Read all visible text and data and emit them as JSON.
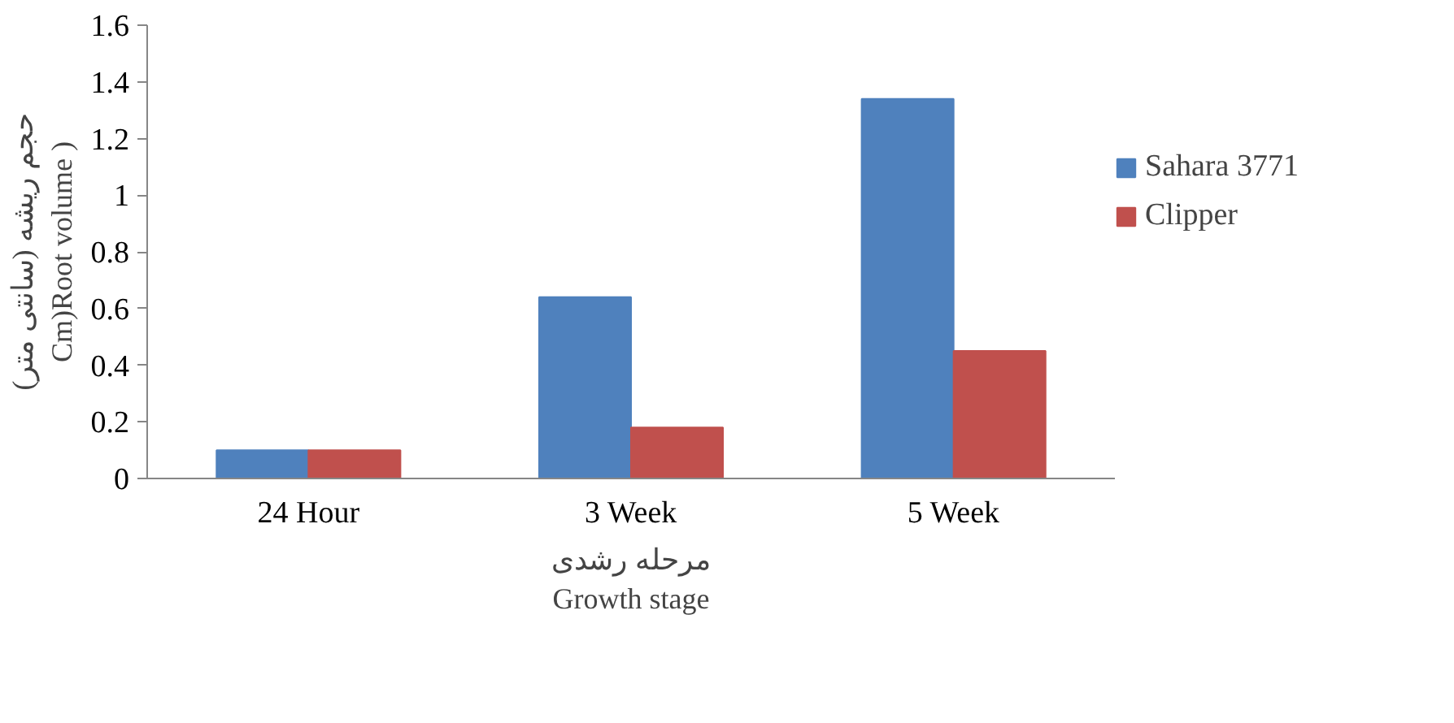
{
  "chart_data": {
    "type": "bar",
    "categories": [
      "24 Hour",
      "3 Week",
      "5 Week"
    ],
    "series": [
      {
        "name": "Sahara 3771",
        "color": "#4f81bd",
        "values": [
          0.1,
          0.64,
          1.34
        ]
      },
      {
        "name": "Clipper",
        "color": "#c0504d",
        "values": [
          0.1,
          0.18,
          0.45
        ]
      }
    ],
    "ylabel": "حجم ریشه (سانتی متر)\nCm)Root volume )",
    "xlabel": "مرحله رشدی\nGrowth stage",
    "ylim": [
      0,
      1.6
    ],
    "yticks": [
      0,
      0.2,
      0.4,
      0.6,
      0.8,
      1,
      1.2,
      1.4,
      1.6
    ],
    "grid": false,
    "legend": "right"
  }
}
